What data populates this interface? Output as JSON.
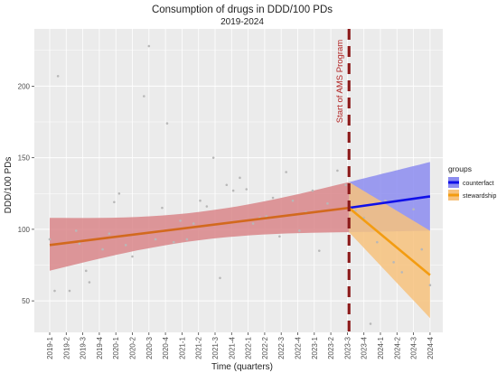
{
  "colors": {
    "panel": "#ebebeb",
    "grid": "#ffffff",
    "counterfactual": "#1010e8",
    "counterfactual_band": "#8c8cf0",
    "stewardship": "#f39c11",
    "stewardship_band": "#f7c27d",
    "pre_line": "#d2691e",
    "pre_band": "#d9868a",
    "points": "#b8b8b8",
    "vline": "#8b1a1a",
    "annotation": "#b22222"
  },
  "chart_data": {
    "type": "line",
    "title": "Consumption of drugs in DDD/100 PDs",
    "subtitle": "2019-2024",
    "xlabel": "Time (quarters)",
    "ylabel": "DDD/100 PDs",
    "categories": [
      "2019-1",
      "2019-2",
      "2019-3",
      "2019-4",
      "2020-1",
      "2020-2",
      "2020-3",
      "2020-4",
      "2021-1",
      "2021-2",
      "2021-3",
      "2021-4",
      "2022-1",
      "2022-2",
      "2022-3",
      "2022-4",
      "2023-1",
      "2023-2",
      "2023-3",
      "2023-4",
      "2024-1",
      "2024-2",
      "2024-3",
      "2024-4"
    ],
    "ylim": [
      28,
      240
    ],
    "yticks": [
      50,
      100,
      150,
      200
    ],
    "grid": true,
    "legend": {
      "title": "groups",
      "position": "right",
      "entries": [
        "counterfact",
        "stewardship"
      ]
    },
    "intervention": {
      "label": "Start of AMS Program",
      "x_index": 18.1
    },
    "observed_points": [
      {
        "x": 0.0,
        "y": 93
      },
      {
        "x": 0.3,
        "y": 57
      },
      {
        "x": 0.5,
        "y": 207
      },
      {
        "x": 1.2,
        "y": 57
      },
      {
        "x": 1.6,
        "y": 99
      },
      {
        "x": 1.8,
        "y": 90
      },
      {
        "x": 2.2,
        "y": 71
      },
      {
        "x": 2.4,
        "y": 63
      },
      {
        "x": 3.2,
        "y": 86
      },
      {
        "x": 3.6,
        "y": 97
      },
      {
        "x": 3.9,
        "y": 119
      },
      {
        "x": 4.2,
        "y": 125
      },
      {
        "x": 4.6,
        "y": 89
      },
      {
        "x": 5.0,
        "y": 81
      },
      {
        "x": 5.7,
        "y": 193
      },
      {
        "x": 6.0,
        "y": 228
      },
      {
        "x": 6.4,
        "y": 93
      },
      {
        "x": 6.8,
        "y": 115
      },
      {
        "x": 7.1,
        "y": 174
      },
      {
        "x": 7.5,
        "y": 91
      },
      {
        "x": 7.9,
        "y": 106
      },
      {
        "x": 8.3,
        "y": 93
      },
      {
        "x": 8.7,
        "y": 104
      },
      {
        "x": 9.1,
        "y": 120
      },
      {
        "x": 9.5,
        "y": 116
      },
      {
        "x": 9.9,
        "y": 150
      },
      {
        "x": 10.3,
        "y": 66
      },
      {
        "x": 10.7,
        "y": 131
      },
      {
        "x": 11.1,
        "y": 127
      },
      {
        "x": 11.5,
        "y": 136
      },
      {
        "x": 11.9,
        "y": 128
      },
      {
        "x": 12.3,
        "y": 104
      },
      {
        "x": 12.7,
        "y": 108
      },
      {
        "x": 13.1,
        "y": 109
      },
      {
        "x": 13.5,
        "y": 122
      },
      {
        "x": 13.9,
        "y": 95
      },
      {
        "x": 14.3,
        "y": 140
      },
      {
        "x": 14.7,
        "y": 120
      },
      {
        "x": 15.1,
        "y": 99
      },
      {
        "x": 15.5,
        "y": 112
      },
      {
        "x": 15.9,
        "y": 127
      },
      {
        "x": 16.3,
        "y": 85
      },
      {
        "x": 16.8,
        "y": 118
      },
      {
        "x": 17.4,
        "y": 141
      },
      {
        "x": 17.9,
        "y": 131
      },
      {
        "x": 18.5,
        "y": 113
      },
      {
        "x": 19.0,
        "y": 108
      },
      {
        "x": 19.4,
        "y": 34
      },
      {
        "x": 19.8,
        "y": 91
      },
      {
        "x": 20.3,
        "y": 120
      },
      {
        "x": 20.8,
        "y": 77
      },
      {
        "x": 21.3,
        "y": 70
      },
      {
        "x": 22.0,
        "y": 114
      },
      {
        "x": 22.5,
        "y": 86
      },
      {
        "x": 23.0,
        "y": 61
      }
    ],
    "series": [
      {
        "id": "pre",
        "x": [
          0,
          18.1
        ],
        "y": [
          89,
          115
        ],
        "band_low": [
          71,
          98
        ],
        "band_high": [
          108,
          133
        ]
      },
      {
        "name": "counterfact",
        "x": [
          18.1,
          23.0
        ],
        "y": [
          115,
          123
        ],
        "band_low": [
          98,
          99
        ],
        "band_high": [
          133,
          147
        ]
      },
      {
        "name": "stewardship",
        "x": [
          18.1,
          23.0
        ],
        "y": [
          115,
          68
        ],
        "band_low": [
          98,
          38
        ],
        "band_high": [
          133,
          99
        ]
      }
    ]
  }
}
